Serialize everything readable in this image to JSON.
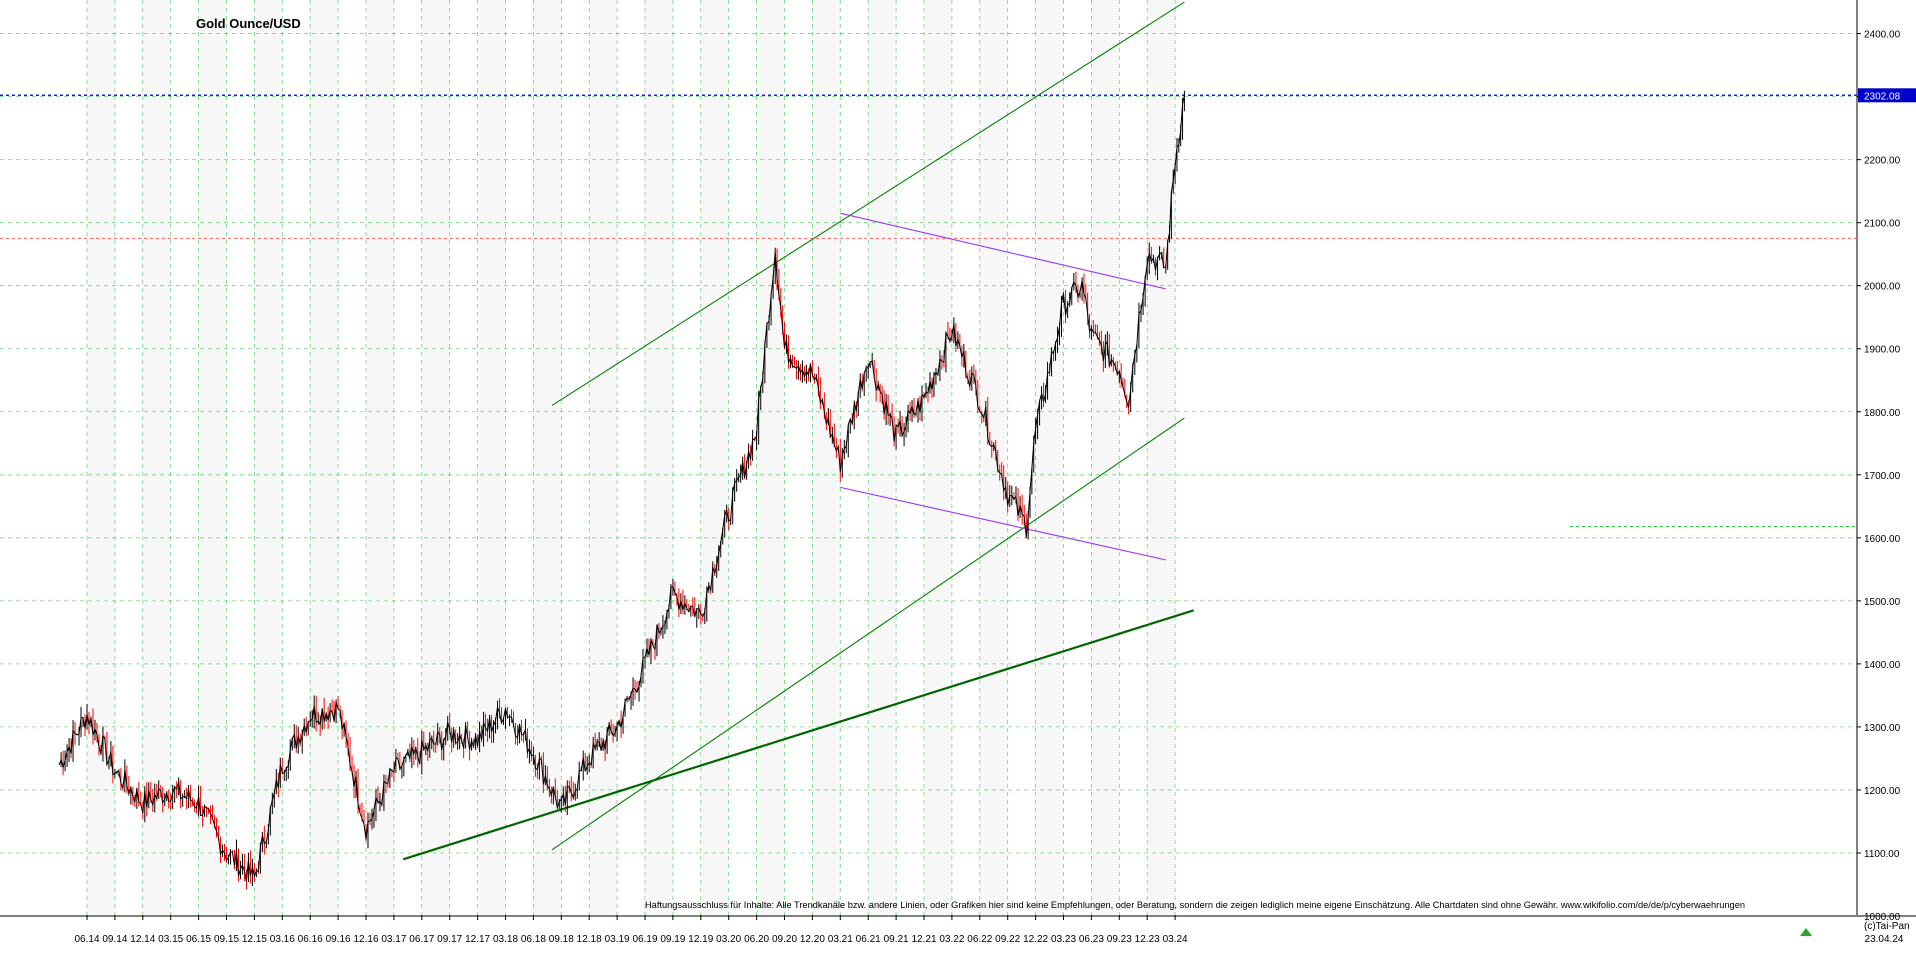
{
  "chart_data": {
    "type": "line",
    "title": "Gold Ounce/USD",
    "xlabel": "",
    "ylabel": "",
    "ylim": [
      1000,
      2450
    ],
    "y_ticks": [
      1000,
      1100,
      1200,
      1300,
      1400,
      1500,
      1600,
      1700,
      1800,
      1900,
      2000,
      2100,
      2200,
      2300,
      2400
    ],
    "y_tick_labels": [
      "1000.00",
      "1100.00",
      "1200.00",
      "1300.00",
      "1400.00",
      "1500.00",
      "1600.00",
      "1700.00",
      "1800.00",
      "1900.00",
      "2000.00",
      "2100.00",
      "2200.00",
      "2300.00",
      "2400.00"
    ],
    "x_tick_labels": [
      "06.14",
      "09.14",
      "12.14",
      "03.15",
      "06.15",
      "09.15",
      "12.15",
      "03.16",
      "06.16",
      "09.16",
      "12.16",
      "03.17",
      "06.17",
      "09.17",
      "12.17",
      "03.18",
      "06.18",
      "09.18",
      "12.18",
      "03.19",
      "06.19",
      "09.19",
      "12.19",
      "03.20",
      "06.20",
      "09.20",
      "12.20",
      "03.21",
      "06.21",
      "09.21",
      "12.21",
      "03.22",
      "06.22",
      "09.22",
      "12.22",
      "03.23",
      "06.23",
      "09.23",
      "12.23",
      "03.24"
    ],
    "grid": true,
    "legend": "none",
    "last_value": 2302.08,
    "last_value_label": "2302.08",
    "last_date": "23.04.24",
    "reference_level": 2075,
    "series": [
      {
        "x": [
          "03.14",
          "06.14",
          "09.14",
          "12.14",
          "03.15",
          "06.15",
          "09.15",
          "12.15",
          "03.16",
          "06.16",
          "09.16",
          "12.16",
          "03.17",
          "06.17",
          "09.17",
          "12.17",
          "03.18",
          "06.18",
          "09.18",
          "12.18",
          "03.19",
          "06.19",
          "09.19",
          "12.19",
          "03.20",
          "06.20",
          "08.20",
          "09.20",
          "12.20",
          "03.21",
          "06.21",
          "09.21",
          "12.21",
          "03.22",
          "06.22",
          "09.22",
          "11.22",
          "12.22",
          "03.23",
          "05.23",
          "06.23",
          "09.23",
          "10.23",
          "12.23",
          "02.24",
          "03.24",
          "04.24"
        ],
        "values": [
          1240,
          1320,
          1230,
          1180,
          1200,
          1180,
          1100,
          1060,
          1240,
          1320,
          1330,
          1140,
          1230,
          1260,
          1290,
          1280,
          1330,
          1260,
          1170,
          1250,
          1300,
          1400,
          1510,
          1480,
          1640,
          1770,
          2060,
          1900,
          1860,
          1720,
          1890,
          1760,
          1820,
          1930,
          1820,
          1670,
          1620,
          1770,
          1970,
          2000,
          1920,
          1870,
          1820,
          2050,
          2030,
          2200,
          2302.08
        ]
      }
    ],
    "trendlines": [
      {
        "color": "#008000",
        "from": {
          "x": "08.18",
          "y": 1105
        },
        "to": {
          "x": "04.24",
          "y": 1790
        }
      },
      {
        "color": "#008000",
        "from": {
          "x": "08.18",
          "y": 1810
        },
        "to": {
          "x": "04.24",
          "y": 2450
        }
      },
      {
        "color": "#006400",
        "from": {
          "x": "04.17",
          "y": 1090
        },
        "to": {
          "x": "05.24",
          "y": 1485
        }
      },
      {
        "color": "#9933ff",
        "from": {
          "x": "03.21",
          "y": 2115
        },
        "to": {
          "x": "02.24",
          "y": 1995
        }
      },
      {
        "color": "#9933ff",
        "from": {
          "x": "03.21",
          "y": 1680
        },
        "to": {
          "x": "02.24",
          "y": 1565
        }
      }
    ],
    "annotations": [
      {
        "text": "Haftungsausschluss für Inhalte: Alle Trendkanäle bzw. andere Linien, oder Grafiken hier sind keine Empfehlungen, oder Beratung, sondern die zeigen lediglich meine eigene Einschätzung. Alle Chartdaten sind ohne Gewähr.  www.wikifolio.com/de/de/p/cyberwaehrungen"
      },
      {
        "text": "(c)Tai-Pan"
      }
    ]
  },
  "colors": {
    "grid": "#2ecc40",
    "price": "#000000",
    "down_bars": "#ff0000",
    "last_value_line": "#1a1aff",
    "reference_line": "#ff6666",
    "label_bg": "#0000cc"
  }
}
